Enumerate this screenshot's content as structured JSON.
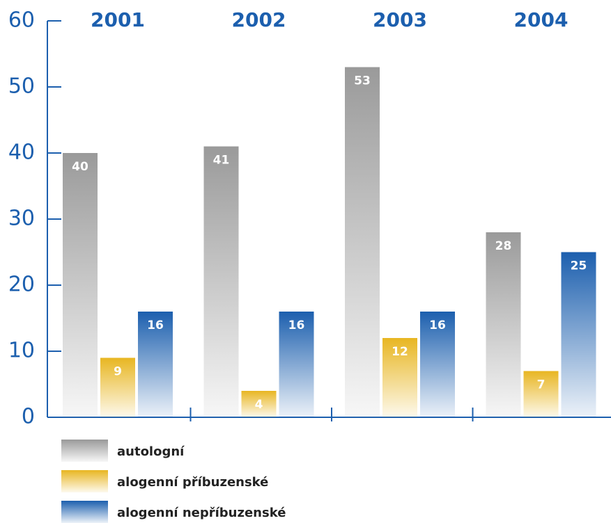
{
  "chart_data": {
    "type": "bar",
    "categories": [
      "2001",
      "2002",
      "2003",
      "2004"
    ],
    "series": [
      {
        "name": "autologní",
        "color": "#9a9a9a",
        "values": [
          40,
          41,
          53,
          28
        ]
      },
      {
        "name": "alogenní příbuzenské",
        "color": "#e8b622",
        "values": [
          9,
          4,
          12,
          7
        ]
      },
      {
        "name": "alogenní nepříbuzenské",
        "color": "#1c5fae",
        "values": [
          16,
          16,
          16,
          25
        ]
      }
    ],
    "ylim": [
      0,
      60
    ],
    "yticks": [
      0,
      10,
      20,
      30,
      40,
      50,
      60
    ],
    "grid": false,
    "legend": "bottom"
  }
}
